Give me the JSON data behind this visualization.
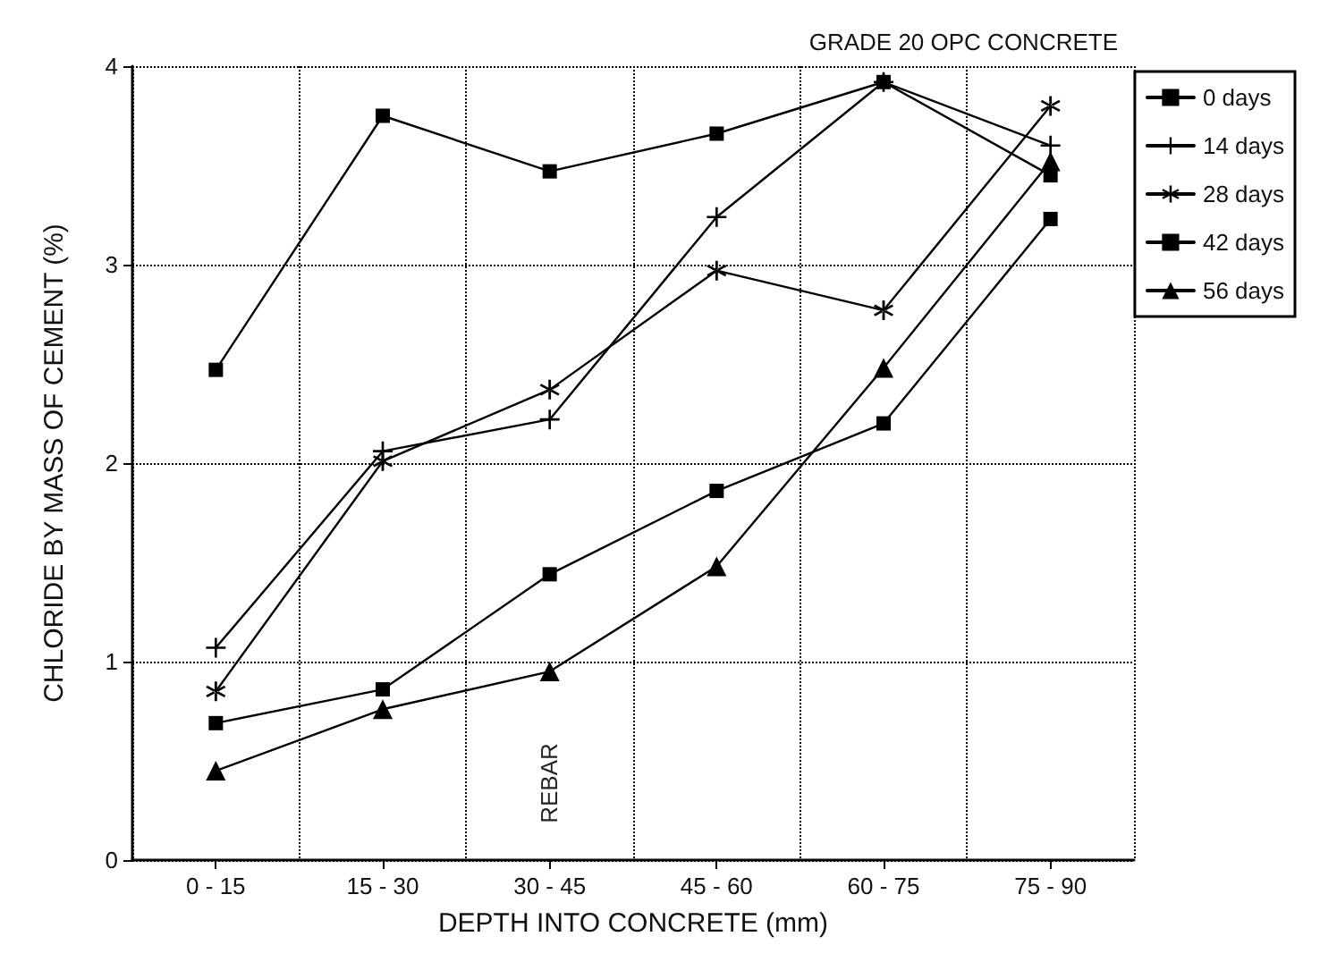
{
  "chart_data": {
    "type": "line",
    "title": "GRADE 20 OPC CONCRETE",
    "xlabel": "DEPTH INTO CONCRETE (mm)",
    "ylabel": "CHLORIDE BY MASS OF CEMENT (%)",
    "categories": [
      "0 - 15",
      "15 - 30",
      "30 - 45",
      "45 - 60",
      "60 - 75",
      "75 - 90"
    ],
    "series": [
      {
        "name": "0 days",
        "color": "#000000",
        "marker": "square",
        "values": [
          2.47,
          3.75,
          3.47,
          3.66,
          3.92,
          3.45
        ]
      },
      {
        "name": "14 days",
        "color": "#000000",
        "marker": "cross",
        "values": [
          1.07,
          2.06,
          2.22,
          3.24,
          3.92,
          3.6
        ]
      },
      {
        "name": "28 days",
        "color": "#000000",
        "marker": "cross",
        "values": [
          0.85,
          2.01,
          2.37,
          2.97,
          2.77,
          3.8
        ]
      },
      {
        "name": "42 days",
        "color": "#000000",
        "marker": "square",
        "values": [
          0.69,
          0.86,
          1.44,
          1.86,
          2.2,
          3.23
        ]
      },
      {
        "name": "56 days",
        "color": "#000000",
        "marker": "triangle",
        "values": [
          0.45,
          0.76,
          0.95,
          1.48,
          2.48,
          3.52
        ]
      }
    ],
    "ylim": [
      0,
      4
    ],
    "yticks": [
      0,
      1,
      2,
      3,
      4
    ],
    "grid": true,
    "legend": "right",
    "line_style": "solid",
    "annotations": [
      "REBAR"
    ]
  }
}
